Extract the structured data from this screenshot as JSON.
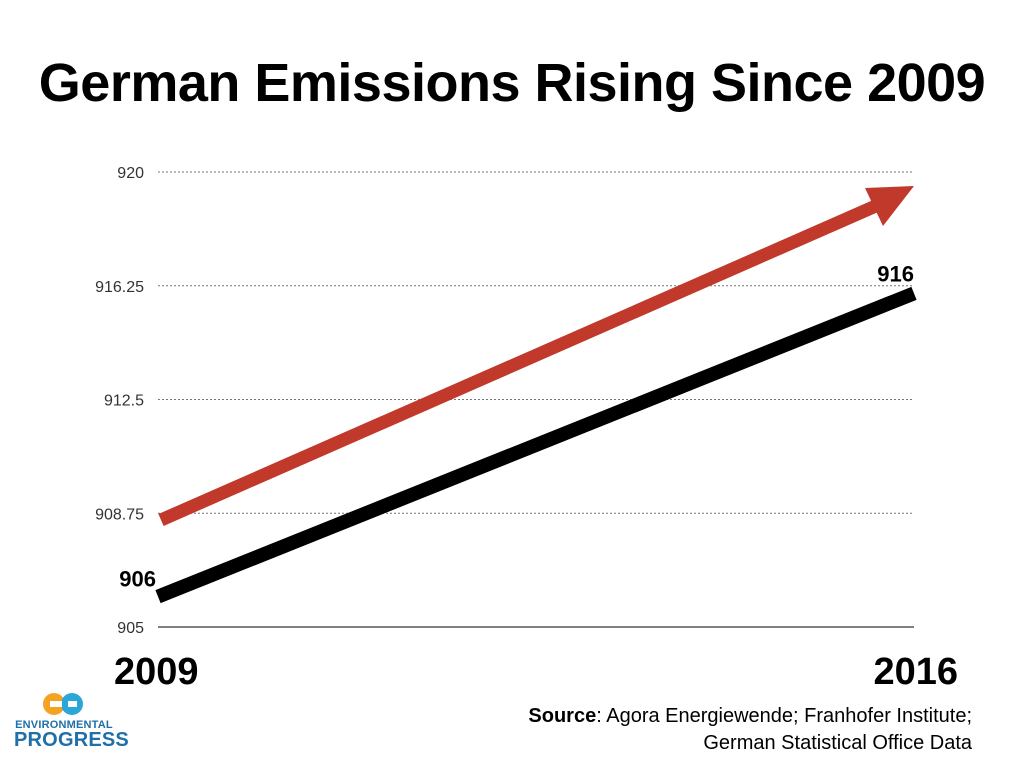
{
  "title": "German Emissions Rising Since 2009",
  "source": {
    "label": "Source",
    "text": ": Agora Energiewende; Franhofer Institute; German Statistical Office Data"
  },
  "logo": {
    "icon": "ep-logo-icon",
    "line1": "ENVIRONMENTAL",
    "line2": "PROGRESS",
    "colors": {
      "orange": "#f4a21f",
      "blue": "#1f6fa8"
    }
  },
  "chart_data": {
    "type": "line",
    "title": "German Emissions Rising Since 2009",
    "xlabel": "",
    "ylabel": "",
    "categories": [
      "2009",
      "2016"
    ],
    "series": [
      {
        "values": [
          906,
          916
        ],
        "color": "#000000",
        "data_labels": [
          "906",
          "916"
        ]
      }
    ],
    "trend_arrow": {
      "color": "#c0392b",
      "direction": "up"
    },
    "yticks": [
      "905",
      "908.75",
      "912.5",
      "916.25",
      "920"
    ],
    "ylim": [
      905,
      920
    ],
    "grid": true
  }
}
